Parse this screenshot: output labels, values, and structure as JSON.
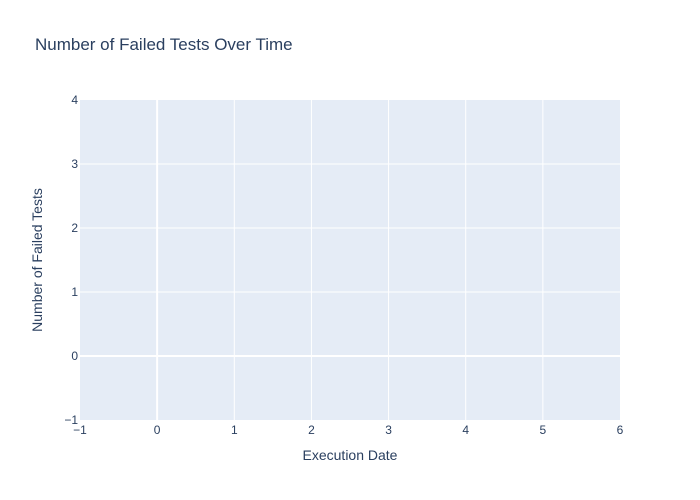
{
  "chart_data": {
    "type": "line",
    "title": "Number of Failed Tests Over Time",
    "xlabel": "Execution Date",
    "ylabel": "Number of Failed Tests",
    "x": [],
    "series": [],
    "xlim": [
      -1,
      6
    ],
    "ylim": [
      -1,
      4
    ],
    "xticks": [
      -1,
      0,
      1,
      2,
      3,
      4,
      5,
      6
    ],
    "yticks": [
      -1,
      0,
      1,
      2,
      3,
      4
    ],
    "xtick_labels": [
      "−1",
      "0",
      "1",
      "2",
      "3",
      "4",
      "5",
      "6"
    ],
    "ytick_labels": [
      "−1",
      "0",
      "1",
      "2",
      "3",
      "4"
    ],
    "grid": true,
    "legend": "none",
    "colors": {
      "plot_background": "#e5ecf6",
      "grid": "#ffffff",
      "text": "#2a3f5f"
    }
  }
}
